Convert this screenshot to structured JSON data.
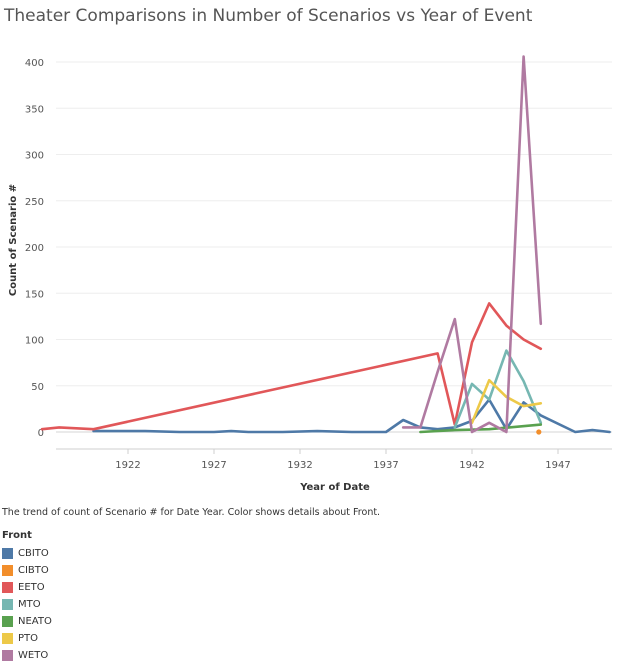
{
  "chart_data": {
    "type": "line",
    "title": "Theater Comparisons in Number of Scenarios vs Year of Event",
    "xlabel": "Year of Date",
    "ylabel": "Count of Scenario #",
    "x_ticks": [
      1922,
      1927,
      1932,
      1937,
      1942,
      1947
    ],
    "y_ticks": [
      0,
      50,
      100,
      150,
      200,
      250,
      300,
      350,
      400
    ],
    "xlim": [
      1915.5,
      1950.5
    ],
    "ylim": [
      0,
      410
    ],
    "grid": true,
    "legend_position": "bottom-left",
    "series": [
      {
        "name": "CBITO",
        "color": "#4e79a7",
        "points": [
          [
            1920,
            1
          ],
          [
            1923,
            1
          ],
          [
            1925,
            0
          ],
          [
            1927,
            0
          ],
          [
            1928,
            1
          ],
          [
            1929,
            0
          ],
          [
            1931,
            0
          ],
          [
            1933,
            1
          ],
          [
            1935,
            0
          ],
          [
            1937,
            0
          ],
          [
            1938,
            13
          ],
          [
            1939,
            5
          ],
          [
            1940,
            3
          ],
          [
            1941,
            5
          ],
          [
            1942,
            12
          ],
          [
            1943,
            35
          ],
          [
            1944,
            3
          ],
          [
            1945,
            32
          ],
          [
            1946,
            18
          ],
          [
            1948,
            0
          ],
          [
            1949,
            2
          ],
          [
            1950,
            0
          ]
        ]
      },
      {
        "name": "CIBTO",
        "color": "#f28e2b",
        "points": [
          [
            1946,
            0
          ]
        ]
      },
      {
        "name": "EETO",
        "color": "#e15759",
        "points": [
          [
            1917,
            3
          ],
          [
            1918,
            5
          ],
          [
            1920,
            3
          ],
          [
            1940,
            85
          ],
          [
            1941,
            8
          ],
          [
            1942,
            97
          ],
          [
            1943,
            139
          ],
          [
            1944,
            115
          ],
          [
            1945,
            100
          ],
          [
            1946,
            90
          ]
        ]
      },
      {
        "name": "MTO",
        "color": "#76b7b2",
        "points": [
          [
            1941,
            5
          ],
          [
            1942,
            52
          ],
          [
            1943,
            35
          ],
          [
            1944,
            88
          ],
          [
            1945,
            55
          ],
          [
            1946,
            10
          ]
        ]
      },
      {
        "name": "NEATO",
        "color": "#59a14f",
        "points": [
          [
            1939,
            0
          ],
          [
            1941,
            2
          ],
          [
            1943,
            3
          ],
          [
            1946,
            8
          ]
        ]
      },
      {
        "name": "PTO",
        "color": "#edc948",
        "points": [
          [
            1942,
            10
          ],
          [
            1943,
            56
          ],
          [
            1944,
            38
          ],
          [
            1945,
            28
          ],
          [
            1946,
            31
          ]
        ]
      },
      {
        "name": "WETO",
        "color": "#b07aa1",
        "points": [
          [
            1938,
            5
          ],
          [
            1939,
            5
          ],
          [
            1940,
            65
          ],
          [
            1941,
            122
          ],
          [
            1942,
            0
          ],
          [
            1943,
            10
          ],
          [
            1944,
            0
          ],
          [
            1945,
            406
          ],
          [
            1946,
            117
          ]
        ]
      }
    ]
  },
  "caption": "The trend of count of Scenario # for Date Year.  Color shows details about Front.",
  "legend": {
    "title": "Front",
    "items": [
      {
        "name": "CBITO",
        "color": "#4e79a7"
      },
      {
        "name": "CIBTO",
        "color": "#f28e2b"
      },
      {
        "name": "EETO",
        "color": "#e15759"
      },
      {
        "name": "MTO",
        "color": "#76b7b2"
      },
      {
        "name": "NEATO",
        "color": "#59a14f"
      },
      {
        "name": "PTO",
        "color": "#edc948"
      },
      {
        "name": "WETO",
        "color": "#b07aa1"
      }
    ]
  }
}
